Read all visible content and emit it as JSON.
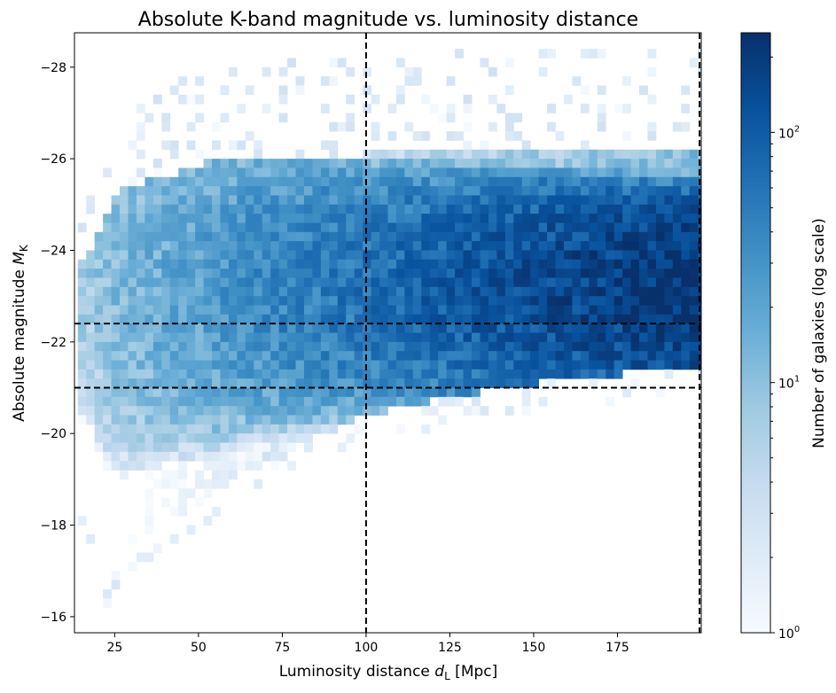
{
  "chart_data": {
    "type": "heatmap",
    "title": "Absolute K-band magnitude vs. luminosity distance",
    "xlabel_main": "Luminosity distance ",
    "xlabel_var": "d",
    "xlabel_sub": "L",
    "xlabel_unit": " [Mpc]",
    "ylabel_main": "Absolute magnitude ",
    "ylabel_var": "M",
    "ylabel_sub": "K",
    "colorbar_label": "Number of galaxies (log scale)",
    "colormap": [
      "#f7fbff",
      "#deebf7",
      "#c6dbef",
      "#9ecae1",
      "#6baed6",
      "#4292c6",
      "#2171b5",
      "#08519c",
      "#08306b"
    ],
    "xlim": [
      13,
      200
    ],
    "ylim": [
      -15.65,
      -28.75
    ],
    "y_inverted": true,
    "x_ticks": [
      25,
      50,
      75,
      100,
      125,
      150,
      175
    ],
    "x_tick_labels": [
      "25",
      "50",
      "75",
      "100",
      "125",
      "150",
      "175"
    ],
    "y_ticks": [
      -28,
      -26,
      -24,
      -22,
      -20,
      -18,
      -16
    ],
    "y_tick_labels": [
      "−28",
      "−26",
      "−24",
      "−22",
      "−20",
      "−18",
      "−16"
    ],
    "colorbar": {
      "scale": "log",
      "min": 1,
      "max": 250,
      "major_ticks": [
        1,
        10,
        100
      ],
      "major_tick_labels": [
        "10",
        "10",
        "10"
      ],
      "major_tick_exponents": [
        "0",
        "1",
        "2"
      ]
    },
    "reference_lines": {
      "vertical_x": [
        100,
        199.5
      ],
      "horizontal_y": [
        -22.4,
        -21.0
      ],
      "style": "dashed",
      "color": "#000000"
    },
    "density_model": {
      "x_bin_width": 2.5,
      "y_bin_width": 0.2,
      "upper_edge_at_x": [
        [
          15,
          -23.5
        ],
        [
          25,
          -25.0
        ],
        [
          50,
          -25.6
        ],
        [
          100,
          -25.8
        ],
        [
          150,
          -26.0
        ],
        [
          199,
          -26.0
        ]
      ],
      "lower_edge_at_x": [
        [
          15,
          -19.0
        ],
        [
          20,
          -17.2
        ],
        [
          25,
          -17.6
        ],
        [
          50,
          -19.1
        ],
        [
          75,
          -20.2
        ],
        [
          100,
          -20.9
        ],
        [
          125,
          -21.3
        ],
        [
          150,
          -21.6
        ],
        [
          175,
          -21.8
        ],
        [
          199,
          -22.0
        ]
      ],
      "peak_counts_at_x": [
        [
          15,
          8
        ],
        [
          50,
          25
        ],
        [
          100,
          70
        ],
        [
          150,
          150
        ],
        [
          199,
          250
        ]
      ],
      "peak_magnitude": -23.3
    }
  }
}
